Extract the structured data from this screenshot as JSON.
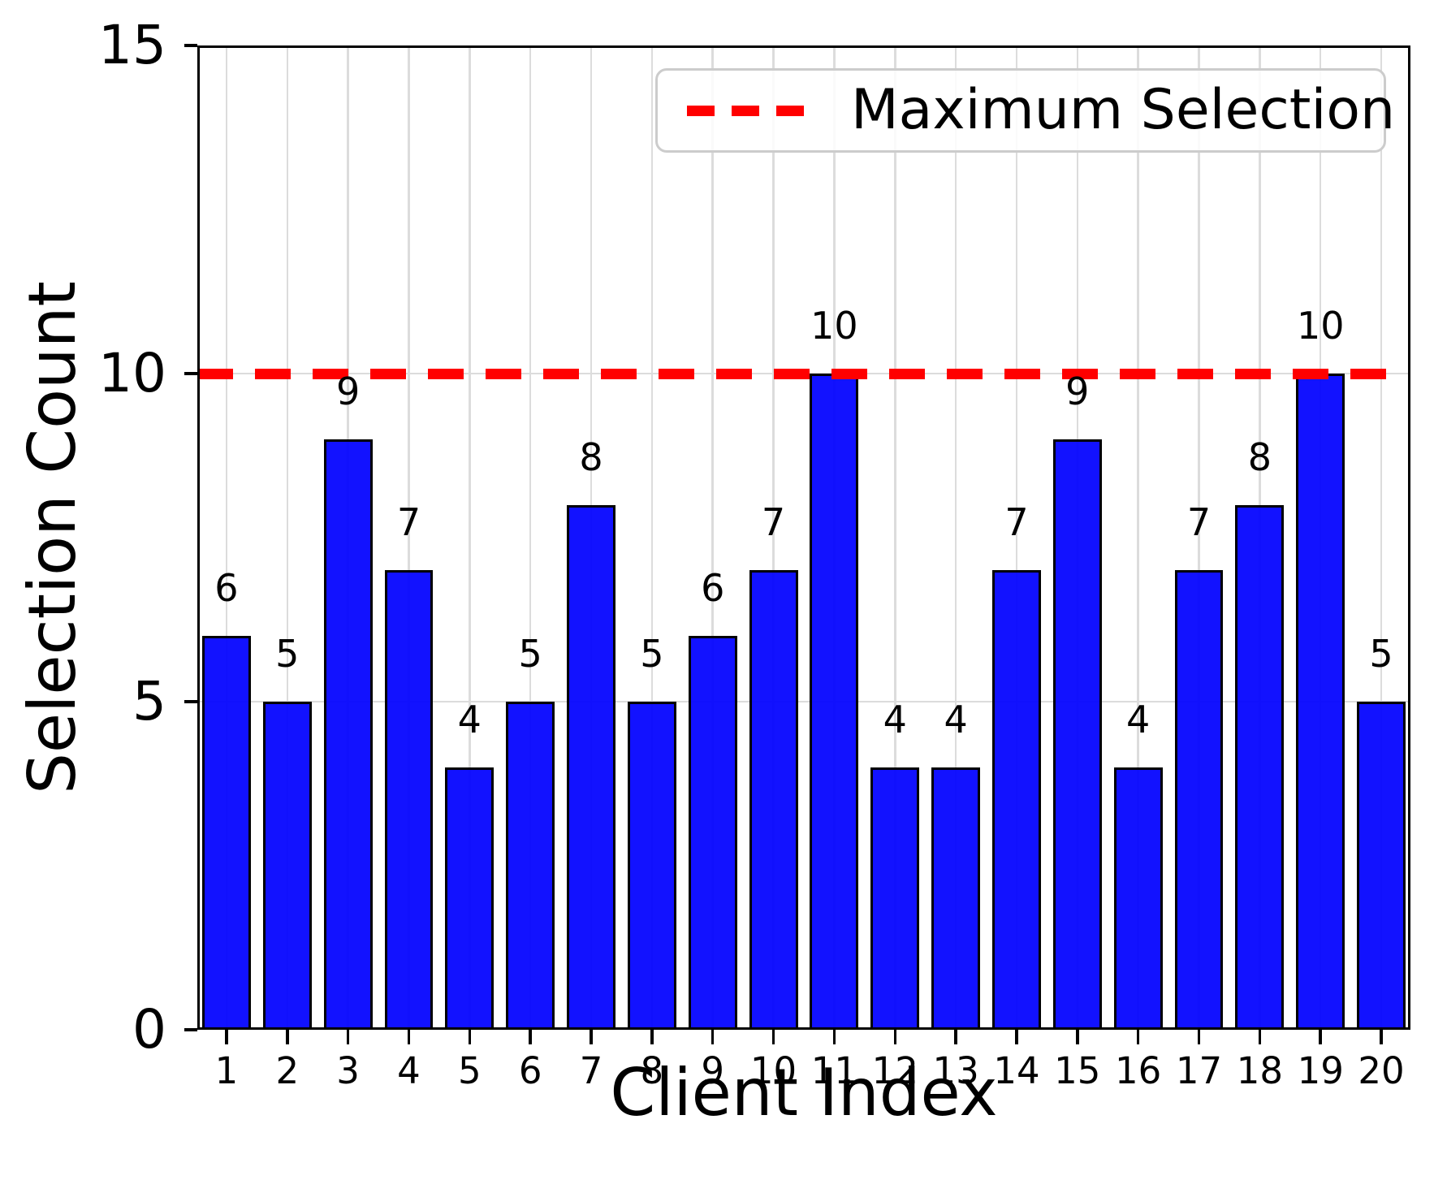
{
  "chart_data": {
    "type": "bar",
    "title": "",
    "xlabel": "Client Index",
    "ylabel": "Selection Count",
    "categories": [
      "1",
      "2",
      "3",
      "4",
      "5",
      "6",
      "7",
      "8",
      "9",
      "10",
      "11",
      "12",
      "13",
      "14",
      "15",
      "16",
      "17",
      "18",
      "19",
      "20"
    ],
    "values": [
      6,
      5,
      9,
      7,
      4,
      5,
      8,
      5,
      6,
      7,
      10,
      4,
      4,
      7,
      9,
      4,
      7,
      8,
      10,
      5
    ],
    "bar_value_labels": [
      "6",
      "5",
      "9",
      "7",
      "4",
      "5",
      "8",
      "5",
      "6",
      "7",
      "10",
      "4",
      "4",
      "7",
      "9",
      "4",
      "7",
      "8",
      "10",
      "5"
    ],
    "ylim": [
      0,
      15
    ],
    "ytick_labels": [
      "0",
      "5",
      "10",
      "15"
    ],
    "ytick_values": [
      0,
      5,
      10,
      15
    ],
    "grid": true,
    "legend": {
      "label": "Maximum Selection",
      "position": "upper right"
    },
    "max_line": {
      "value": 10,
      "style": "dashed",
      "color": "#ff0000"
    },
    "colors": {
      "bar_fill": "#0000ff",
      "bar_edge": "#000000",
      "grid": "#dcdcdc",
      "spine": "#000000",
      "text": "#000000"
    }
  }
}
